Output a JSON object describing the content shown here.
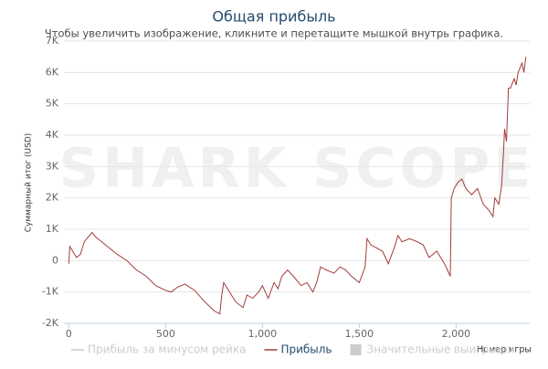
{
  "chart_data": {
    "type": "line",
    "title": "Общая прибыль",
    "subtitle": "Чтобы увеличить изображение, кликните и перетащите мышкой внутрь графика.",
    "watermark": "SHARK SCOPE",
    "y_label": "Суммарный итог (USD)",
    "x_label": "Номер игры",
    "xlim": [
      -25,
      2380
    ],
    "ylim": [
      -2000,
      7000
    ],
    "xticks": [
      0,
      500,
      {
        "value": 1000,
        "label": "1,000"
      },
      {
        "value": 1500,
        "label": "1,500"
      },
      {
        "value": 2000,
        "label": "2,000"
      }
    ],
    "yticks": [
      {
        "value": -2000,
        "label": "-2K"
      },
      {
        "value": -1000,
        "label": "-1K"
      },
      0,
      {
        "value": 1000,
        "label": "1K"
      },
      {
        "value": 2000,
        "label": "2K"
      },
      {
        "value": 3000,
        "label": "3K"
      },
      {
        "value": 4000,
        "label": "4K"
      },
      {
        "value": 5000,
        "label": "5K"
      },
      {
        "value": 6000,
        "label": "6K"
      },
      {
        "value": 7000,
        "label": "7K"
      }
    ],
    "grid": true,
    "x": [
      0,
      5,
      20,
      40,
      60,
      80,
      100,
      120,
      140,
      160,
      200,
      250,
      300,
      350,
      400,
      450,
      500,
      530,
      560,
      600,
      650,
      700,
      750,
      780,
      790,
      800,
      830,
      860,
      900,
      920,
      950,
      980,
      1000,
      1030,
      1060,
      1080,
      1100,
      1130,
      1160,
      1200,
      1230,
      1260,
      1280,
      1300,
      1330,
      1370,
      1400,
      1430,
      1460,
      1500,
      1530,
      1540,
      1560,
      1590,
      1620,
      1650,
      1680,
      1700,
      1720,
      1760,
      1800,
      1830,
      1860,
      1900,
      1940,
      1970,
      1975,
      1990,
      2010,
      2030,
      2050,
      2080,
      2110,
      2140,
      2170,
      2190,
      2200,
      2220,
      2235,
      2245,
      2250,
      2260,
      2270,
      2280,
      2300,
      2310,
      2320,
      2340,
      2350,
      2360
    ],
    "series": [
      {
        "name": "Прибыль за минусом рейка",
        "color": "#cccccc",
        "visible": false
      },
      {
        "name": "Прибыль",
        "color": "#a33b3b",
        "visible": true,
        "values": [
          -100,
          450,
          300,
          100,
          200,
          600,
          750,
          900,
          750,
          650,
          450,
          200,
          0,
          -300,
          -500,
          -800,
          -950,
          -1000,
          -850,
          -750,
          -950,
          -1300,
          -1600,
          -1700,
          -1100,
          -700,
          -1000,
          -1300,
          -1500,
          -1100,
          -1200,
          -1000,
          -800,
          -1200,
          -700,
          -900,
          -500,
          -300,
          -500,
          -800,
          -700,
          -1000,
          -700,
          -200,
          -300,
          -400,
          -200,
          -300,
          -500,
          -700,
          -200,
          700,
          500,
          400,
          300,
          -100,
          400,
          800,
          600,
          700,
          600,
          500,
          100,
          300,
          -100,
          -500,
          2000,
          2300,
          2500,
          2600,
          2300,
          2100,
          2300,
          1800,
          1600,
          1400,
          2000,
          1800,
          2400,
          3500,
          4200,
          3800,
          5500,
          5500,
          5800,
          5600,
          6000,
          6300,
          6000,
          6500
        ]
      },
      {
        "name": "Значительные выигрыши",
        "color": "#cccccc",
        "visible": false,
        "symbol": "box"
      }
    ]
  }
}
